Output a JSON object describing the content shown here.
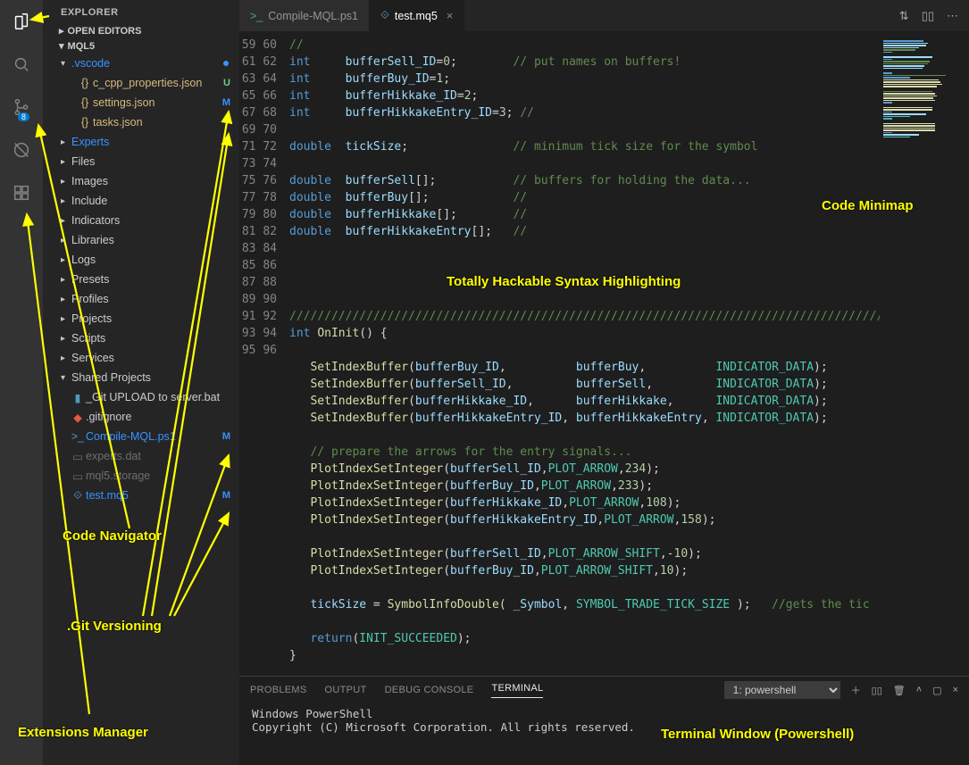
{
  "activityBar": {
    "gitBadge": "8"
  },
  "sidebar": {
    "title": "EXPLORER",
    "sections": {
      "openEditors": "OPEN EDITORS",
      "project": "MQL5"
    },
    "tree": {
      "vscode": ".vscode",
      "ccpp": "c_cpp_properties.json",
      "settings": "settings.json",
      "tasks": "tasks.json",
      "experts": "Experts",
      "files": "Files",
      "images": "Images",
      "include": "Include",
      "indicators": "Indicators",
      "libraries": "Libraries",
      "logs": "Logs",
      "presets": "Presets",
      "profiles": "Profiles",
      "projects": "Projects",
      "scripts": "Scripts",
      "services": "Services",
      "shared": "Shared Projects",
      "gitupload": "_Git UPLOAD to server.bat",
      "gitignore": ".gitignore",
      "compile": "Compile-MQL.ps1",
      "expertsdat": "experts.dat",
      "mql5storage": "mql5.storage",
      "testmq5": "test.mq5"
    },
    "badges": {
      "U": "U",
      "M": "M"
    }
  },
  "tabs": {
    "t1": "Compile-MQL.ps1",
    "t2": "test.mq5"
  },
  "linestart": 59,
  "code": [
    [
      [
        "cm",
        "//"
      ]
    ],
    [
      [
        "kw",
        "int"
      ],
      [
        "pl",
        "     "
      ],
      [
        "id",
        "bufferSell_ID"
      ],
      [
        "pl",
        "="
      ],
      [
        "num",
        "0"
      ],
      [
        "pl",
        ";        "
      ],
      [
        "cm",
        "// put names on buffers!"
      ]
    ],
    [
      [
        "kw",
        "int"
      ],
      [
        "pl",
        "     "
      ],
      [
        "id",
        "bufferBuy_ID"
      ],
      [
        "pl",
        "="
      ],
      [
        "num",
        "1"
      ],
      [
        "pl",
        ";"
      ]
    ],
    [
      [
        "kw",
        "int"
      ],
      [
        "pl",
        "     "
      ],
      [
        "id",
        "bufferHikkake_ID"
      ],
      [
        "pl",
        "="
      ],
      [
        "num",
        "2"
      ],
      [
        "pl",
        ";"
      ]
    ],
    [
      [
        "kw",
        "int"
      ],
      [
        "pl",
        "     "
      ],
      [
        "id",
        "bufferHikkakeEntry_ID"
      ],
      [
        "pl",
        "="
      ],
      [
        "num",
        "3"
      ],
      [
        "pl",
        "; "
      ],
      [
        "cm",
        "//"
      ]
    ],
    [],
    [
      [
        "kw",
        "double"
      ],
      [
        "pl",
        "  "
      ],
      [
        "id",
        "tickSize"
      ],
      [
        "pl",
        ";               "
      ],
      [
        "cm",
        "// minimum tick size for the symbol"
      ]
    ],
    [],
    [
      [
        "kw",
        "double"
      ],
      [
        "pl",
        "  "
      ],
      [
        "id",
        "bufferSell"
      ],
      [
        "pl",
        "[];           "
      ],
      [
        "cm",
        "// buffers for holding the data..."
      ]
    ],
    [
      [
        "kw",
        "double"
      ],
      [
        "pl",
        "  "
      ],
      [
        "id",
        "bufferBuy"
      ],
      [
        "pl",
        "[];            "
      ],
      [
        "cm",
        "//"
      ]
    ],
    [
      [
        "kw",
        "double"
      ],
      [
        "pl",
        "  "
      ],
      [
        "id",
        "bufferHikkake"
      ],
      [
        "pl",
        "[];        "
      ],
      [
        "cm",
        "//"
      ]
    ],
    [
      [
        "kw",
        "double"
      ],
      [
        "pl",
        "  "
      ],
      [
        "id",
        "bufferHikkakeEntry"
      ],
      [
        "pl",
        "[];   "
      ],
      [
        "cm",
        "//"
      ]
    ],
    [],
    [],
    [],
    [],
    [
      [
        "cm",
        "//////////////////////////////////////////////////////////////////////////////////////////////"
      ]
    ],
    [
      [
        "kw",
        "int"
      ],
      [
        "pl",
        " "
      ],
      [
        "fn",
        "OnInit"
      ],
      [
        "pl",
        "() {"
      ]
    ],
    [],
    [
      [
        "pl",
        "   "
      ],
      [
        "fn",
        "SetIndexBuffer"
      ],
      [
        "pl",
        "("
      ],
      [
        "id",
        "bufferBuy_ID"
      ],
      [
        "pl",
        ",          "
      ],
      [
        "id",
        "bufferBuy"
      ],
      [
        "pl",
        ",          "
      ],
      [
        "cn",
        "INDICATOR_DATA"
      ],
      [
        "pl",
        ");"
      ]
    ],
    [
      [
        "pl",
        "   "
      ],
      [
        "fn",
        "SetIndexBuffer"
      ],
      [
        "pl",
        "("
      ],
      [
        "id",
        "bufferSell_ID"
      ],
      [
        "pl",
        ",         "
      ],
      [
        "id",
        "bufferSell"
      ],
      [
        "pl",
        ",         "
      ],
      [
        "cn",
        "INDICATOR_DATA"
      ],
      [
        "pl",
        ");"
      ]
    ],
    [
      [
        "pl",
        "   "
      ],
      [
        "fn",
        "SetIndexBuffer"
      ],
      [
        "pl",
        "("
      ],
      [
        "id",
        "bufferHikkake_ID"
      ],
      [
        "pl",
        ",      "
      ],
      [
        "id",
        "bufferHikkake"
      ],
      [
        "pl",
        ",      "
      ],
      [
        "cn",
        "INDICATOR_DATA"
      ],
      [
        "pl",
        ");"
      ]
    ],
    [
      [
        "pl",
        "   "
      ],
      [
        "fn",
        "SetIndexBuffer"
      ],
      [
        "pl",
        "("
      ],
      [
        "id",
        "bufferHikkakeEntry_ID"
      ],
      [
        "pl",
        ", "
      ],
      [
        "id",
        "bufferHikkakeEntry"
      ],
      [
        "pl",
        ", "
      ],
      [
        "cn",
        "INDICATOR_DATA"
      ],
      [
        "pl",
        ");"
      ]
    ],
    [],
    [
      [
        "pl",
        "   "
      ],
      [
        "cm",
        "// prepare the arrows for the entry signals..."
      ]
    ],
    [
      [
        "pl",
        "   "
      ],
      [
        "fn",
        "PlotIndexSetInteger"
      ],
      [
        "pl",
        "("
      ],
      [
        "id",
        "bufferSell_ID"
      ],
      [
        "pl",
        ","
      ],
      [
        "cn",
        "PLOT_ARROW"
      ],
      [
        "pl",
        ","
      ],
      [
        "num",
        "234"
      ],
      [
        "pl",
        ");"
      ]
    ],
    [
      [
        "pl",
        "   "
      ],
      [
        "fn",
        "PlotIndexSetInteger"
      ],
      [
        "pl",
        "("
      ],
      [
        "id",
        "bufferBuy_ID"
      ],
      [
        "pl",
        ","
      ],
      [
        "cn",
        "PLOT_ARROW"
      ],
      [
        "pl",
        ","
      ],
      [
        "num",
        "233"
      ],
      [
        "pl",
        ");"
      ]
    ],
    [
      [
        "pl",
        "   "
      ],
      [
        "fn",
        "PlotIndexSetInteger"
      ],
      [
        "pl",
        "("
      ],
      [
        "id",
        "bufferHikkake_ID"
      ],
      [
        "pl",
        ","
      ],
      [
        "cn",
        "PLOT_ARROW"
      ],
      [
        "pl",
        ","
      ],
      [
        "num",
        "108"
      ],
      [
        "pl",
        ");"
      ]
    ],
    [
      [
        "pl",
        "   "
      ],
      [
        "fn",
        "PlotIndexSetInteger"
      ],
      [
        "pl",
        "("
      ],
      [
        "id",
        "bufferHikkakeEntry_ID"
      ],
      [
        "pl",
        ","
      ],
      [
        "cn",
        "PLOT_ARROW"
      ],
      [
        "pl",
        ","
      ],
      [
        "num",
        "158"
      ],
      [
        "pl",
        ");"
      ]
    ],
    [],
    [
      [
        "pl",
        "   "
      ],
      [
        "fn",
        "PlotIndexSetInteger"
      ],
      [
        "pl",
        "("
      ],
      [
        "id",
        "bufferSell_ID"
      ],
      [
        "pl",
        ","
      ],
      [
        "cn",
        "PLOT_ARROW_SHIFT"
      ],
      [
        "pl",
        ",-"
      ],
      [
        "num",
        "10"
      ],
      [
        "pl",
        ");"
      ]
    ],
    [
      [
        "pl",
        "   "
      ],
      [
        "fn",
        "PlotIndexSetInteger"
      ],
      [
        "pl",
        "("
      ],
      [
        "id",
        "bufferBuy_ID"
      ],
      [
        "pl",
        ","
      ],
      [
        "cn",
        "PLOT_ARROW_SHIFT"
      ],
      [
        "pl",
        ","
      ],
      [
        "num",
        "10"
      ],
      [
        "pl",
        ");"
      ]
    ],
    [],
    [
      [
        "pl",
        "   "
      ],
      [
        "id",
        "tickSize"
      ],
      [
        "pl",
        " = "
      ],
      [
        "fn",
        "SymbolInfoDouble"
      ],
      [
        "pl",
        "( "
      ],
      [
        "id",
        "_Symbol"
      ],
      [
        "pl",
        ", "
      ],
      [
        "cn",
        "SYMBOL_TRADE_TICK_SIZE"
      ],
      [
        "pl",
        " );   "
      ],
      [
        "cm",
        "//gets the tic"
      ]
    ],
    [],
    [
      [
        "pl",
        "   "
      ],
      [
        "kw",
        "return"
      ],
      [
        "pl",
        "("
      ],
      [
        "cn",
        "INIT_SUCCEEDED"
      ],
      [
        "pl",
        ");"
      ]
    ],
    [
      [
        "pl",
        "}"
      ]
    ],
    []
  ],
  "panel": {
    "problems": "PROBLEMS",
    "output": "OUTPUT",
    "debug": "DEBUG CONSOLE",
    "terminal": "TERMINAL",
    "termName": "1: powershell",
    "line1": "Windows PowerShell",
    "line2": "Copyright (C) Microsoft Corporation. All rights reserved."
  },
  "annotations": {
    "codeNav": "Code Navigator",
    "gitVer": ".Git Versioning",
    "ext": "Extensions Manager",
    "mini": "Code Minimap",
    "syntax": "Totally Hackable Syntax Highlighting",
    "term": "Terminal Window (Powershell)"
  },
  "minimap": {
    "colors": [
      "#569cd6",
      "#9cdcfe",
      "#608b4e",
      "#4ec9b0",
      "#b5cea8",
      "#dcdcaa"
    ],
    "blocks": [
      [
        [
          0,
          45,
          0
        ],
        [
          0,
          50,
          1
        ],
        [
          0,
          48,
          1
        ],
        [
          0,
          40,
          1
        ],
        [
          0,
          36,
          2
        ],
        [
          0,
          10,
          0
        ]
      ],
      [
        [
          0,
          55,
          1
        ],
        [
          0,
          10,
          0
        ],
        [
          0,
          52,
          2
        ],
        [
          0,
          50,
          2
        ],
        [
          0,
          46,
          1
        ],
        [
          0,
          44,
          1
        ]
      ],
      [
        [
          0,
          10,
          0
        ],
        [
          0,
          70,
          2
        ],
        [
          0,
          30,
          0
        ],
        [
          0,
          62,
          5
        ],
        [
          0,
          64,
          5
        ],
        [
          0,
          66,
          5
        ],
        [
          0,
          60,
          5
        ]
      ],
      [
        [
          0,
          55,
          2
        ],
        [
          0,
          58,
          5
        ],
        [
          0,
          60,
          5
        ],
        [
          0,
          56,
          5
        ],
        [
          0,
          58,
          5
        ],
        [
          0,
          10,
          0
        ]
      ],
      [
        [
          0,
          55,
          5
        ],
        [
          0,
          55,
          5
        ],
        [
          0,
          10,
          0
        ],
        [
          0,
          48,
          1
        ],
        [
          0,
          30,
          3
        ],
        [
          0,
          10,
          0
        ]
      ],
      [
        [
          0,
          58,
          5
        ],
        [
          0,
          58,
          5
        ],
        [
          0,
          58,
          5
        ],
        [
          0,
          58,
          5
        ],
        [
          0,
          10,
          0
        ],
        [
          0,
          40,
          1
        ],
        [
          0,
          30,
          3
        ]
      ]
    ]
  }
}
